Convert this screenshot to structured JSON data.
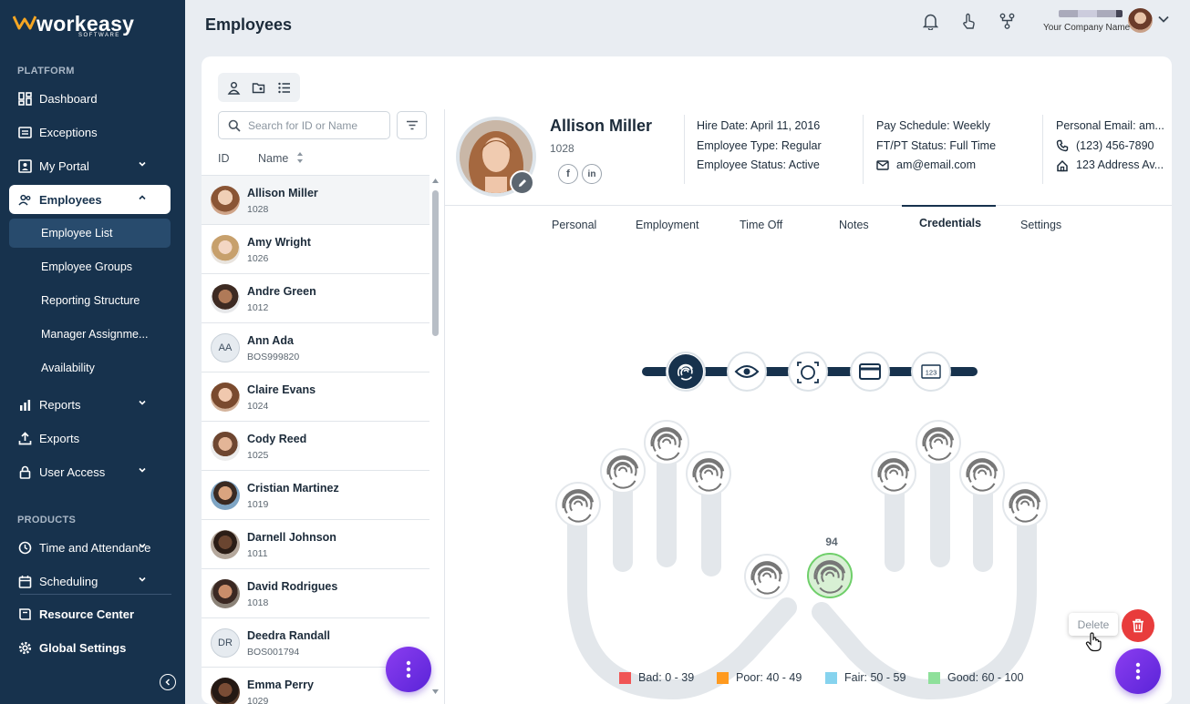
{
  "brand": {
    "name": "workeasy",
    "sub": "SOFTWARE"
  },
  "sidebar": {
    "platform_label": "PLATFORM",
    "products_label": "PRODUCTS",
    "items": [
      {
        "label": "Dashboard"
      },
      {
        "label": "Exceptions"
      },
      {
        "label": "My Portal"
      },
      {
        "label": "Employees"
      },
      {
        "label": "Reports"
      },
      {
        "label": "Exports"
      },
      {
        "label": "User Access"
      },
      {
        "label": "Time and Attendance"
      },
      {
        "label": "Scheduling"
      },
      {
        "label": "Resource Center"
      },
      {
        "label": "Global Settings"
      }
    ],
    "sub_items": [
      {
        "label": "Employee List"
      },
      {
        "label": "Employee Groups"
      },
      {
        "label": "Reporting Structure"
      },
      {
        "label": "Manager Assignme..."
      },
      {
        "label": "Availability"
      }
    ]
  },
  "header": {
    "title": "Employees",
    "company": "Your Company Name"
  },
  "list": {
    "search_placeholder": "Search for ID or Name",
    "col_id": "ID",
    "col_name": "Name",
    "employees": [
      {
        "name": "Allison Miller",
        "id": "1028"
      },
      {
        "name": "Amy Wright",
        "id": "1026"
      },
      {
        "name": "Andre Green",
        "id": "1012"
      },
      {
        "name": "Ann Ada",
        "id": "BOS999820",
        "initials": "AA"
      },
      {
        "name": "Claire Evans",
        "id": "1024"
      },
      {
        "name": "Cody Reed",
        "id": "1025"
      },
      {
        "name": "Cristian Martinez",
        "id": "1019"
      },
      {
        "name": "Darnell Johnson",
        "id": "1011"
      },
      {
        "name": "David Rodrigues",
        "id": "1018"
      },
      {
        "name": "Deedra Randall",
        "id": "BOS001794",
        "initials": "DR"
      },
      {
        "name": "Emma Perry",
        "id": "1029"
      }
    ]
  },
  "profile": {
    "name": "Allison Miller",
    "id": "1028",
    "hire_date": "Hire Date: April 11, 2016",
    "employee_type": "Employee Type: Regular",
    "employee_status": "Employee Status: Active",
    "pay_schedule": "Pay Schedule: Weekly",
    "ftpt_status": "FT/PT Status: Full Time",
    "email": "am@email.com",
    "personal_email": "Personal Email: am...",
    "phone": "(123) 456-7890",
    "address": "123 Address Av..."
  },
  "tabs": [
    {
      "label": "Personal"
    },
    {
      "label": "Employment"
    },
    {
      "label": "Time Off"
    },
    {
      "label": "Notes"
    },
    {
      "label": "Credentials"
    },
    {
      "label": "Settings"
    }
  ],
  "credentials": {
    "selected_score": "94",
    "legend": [
      {
        "label": "Bad:",
        "range": "0 - 39",
        "color": "#f05555"
      },
      {
        "label": "Poor:",
        "range": "40 - 49",
        "color": "#ff9a1f"
      },
      {
        "label": "Fair:",
        "range": "50 - 59",
        "color": "#86d3ee"
      },
      {
        "label": "Good:",
        "range": "60 - 100",
        "color": "#8ee09a"
      }
    ]
  },
  "actions": {
    "delete_label": "Delete"
  }
}
